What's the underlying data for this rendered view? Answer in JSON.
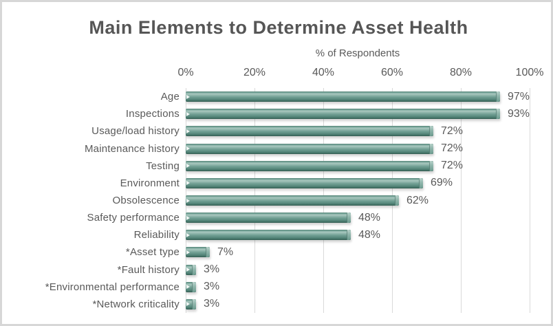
{
  "chart_data": {
    "type": "bar",
    "orientation": "horizontal",
    "title": "Main Elements to Determine Asset Health",
    "xlabel": "% of Respondents",
    "ylabel": "",
    "xlim": [
      0,
      100
    ],
    "x_ticks": [
      "0%",
      "20%",
      "40%",
      "60%",
      "80%",
      "100%"
    ],
    "x_tick_values": [
      0,
      20,
      40,
      60,
      80,
      100
    ],
    "grid": true,
    "legend": false,
    "categories": [
      "Age",
      "Inspections",
      "Usage/load history",
      "Maintenance history",
      "Testing",
      "Environment",
      "Obsolescence",
      "Safety performance",
      "Reliability",
      "*Asset type",
      "*Fault history",
      "*Environmental performance",
      "*Network criticality"
    ],
    "values": [
      97,
      93,
      72,
      72,
      72,
      69,
      62,
      48,
      48,
      7,
      3,
      3,
      3
    ],
    "value_labels": [
      "97%",
      "93%",
      "72%",
      "72%",
      "72%",
      "69%",
      "62%",
      "48%",
      "48%",
      "7%",
      "3%",
      "3%",
      "3%"
    ]
  },
  "colors": {
    "bar_main": "#6f9e92",
    "bar_highlight": "#a9c8bf",
    "bar_dark": "#3a665b",
    "bar_cap": "#8fb5ab",
    "text": "#595959",
    "title_text": "#565656",
    "gridline": "#d9d9d9",
    "frame_border": "#d7d7d7",
    "background": "#ffffff"
  }
}
